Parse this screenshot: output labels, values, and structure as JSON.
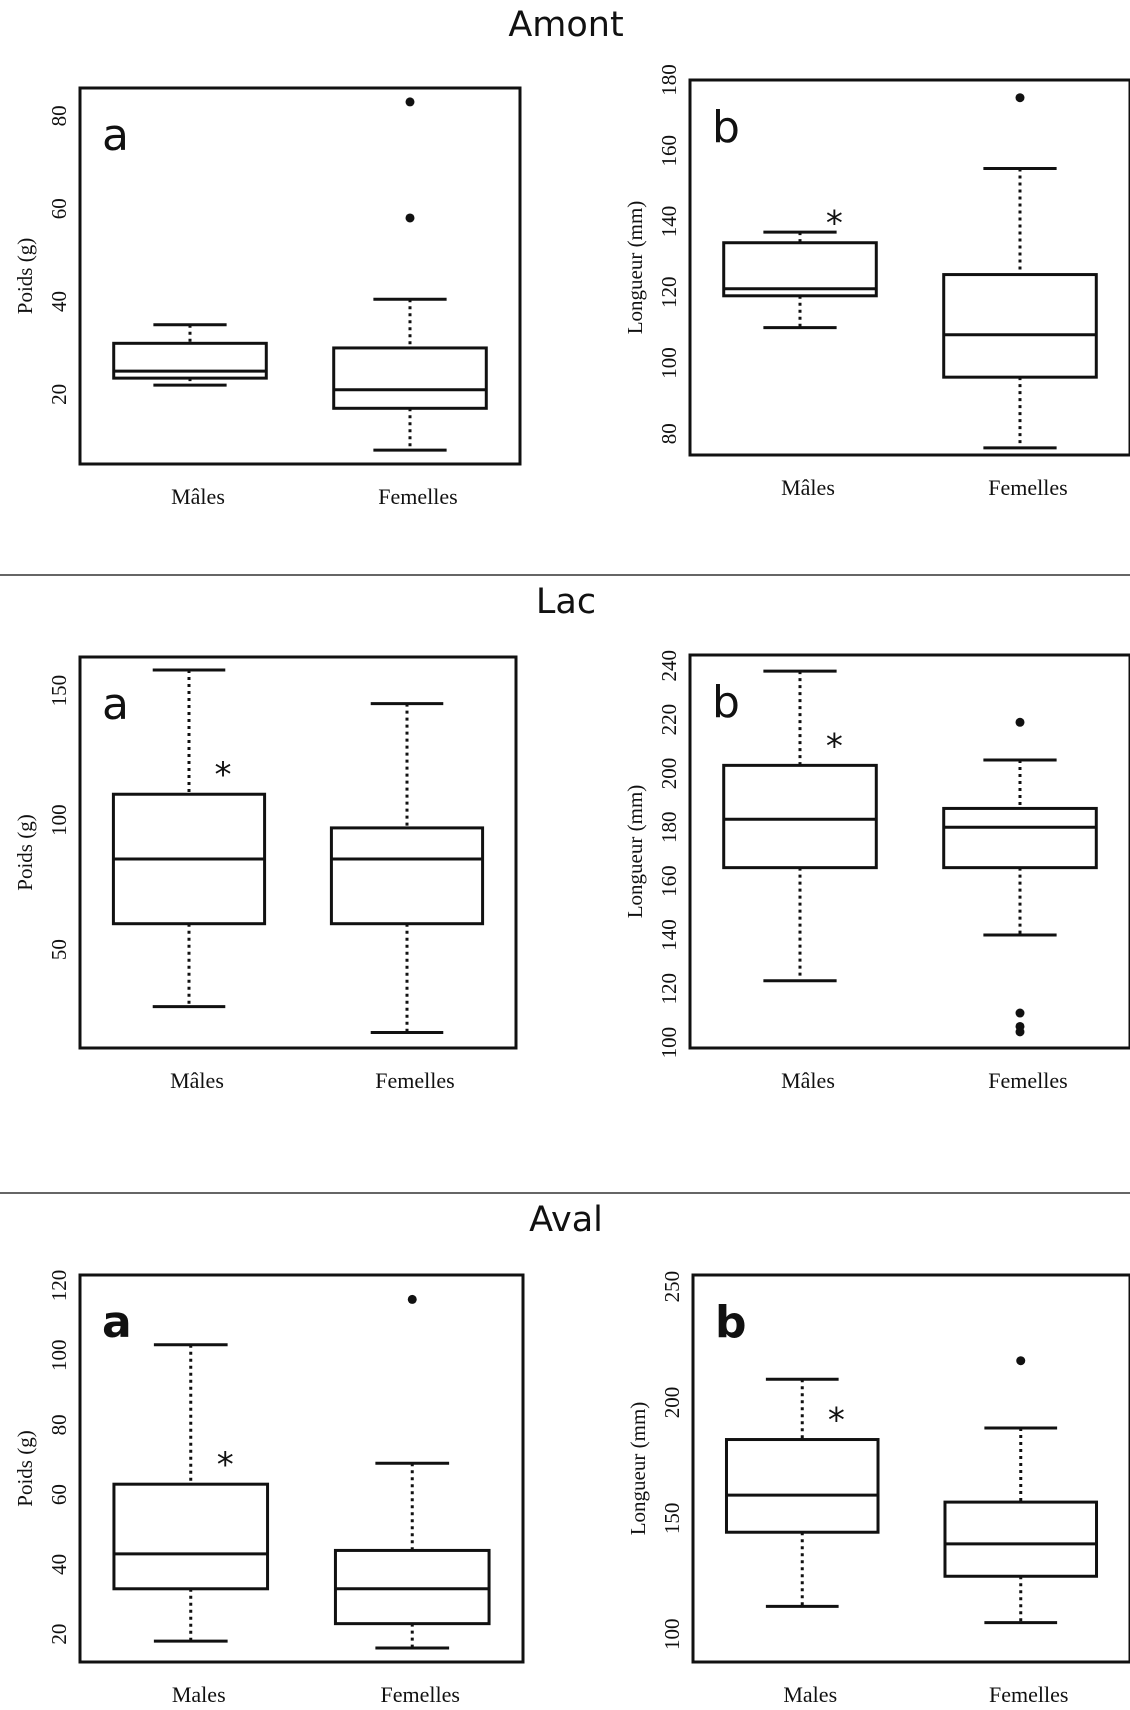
{
  "sections": [
    {
      "title": "Amont"
    },
    {
      "title": "Lac"
    },
    {
      "title": "Aval"
    }
  ],
  "chart_data": [
    {
      "type": "box",
      "section": "Amont",
      "panel_label": "a",
      "ylabel": "Poids (g)",
      "ylim": [
        5,
        86
      ],
      "yticks": [
        20,
        40,
        60,
        80
      ],
      "categories": [
        "Mâles",
        "Femelles"
      ],
      "boxes": [
        {
          "category": "Mâles",
          "whisker_low": 22,
          "q1": 23.5,
          "median": 25,
          "q3": 31,
          "whisker_high": 35,
          "outliers": [],
          "significant": false
        },
        {
          "category": "Femelles",
          "whisker_low": 8,
          "q1": 17,
          "median": 21,
          "q3": 30,
          "whisker_high": 40.5,
          "outliers": [
            58,
            83
          ],
          "significant": false
        }
      ]
    },
    {
      "type": "box",
      "section": "Amont",
      "panel_label": "b",
      "ylabel": "Longueur (mm)",
      "ylim": [
        74,
        180
      ],
      "yticks": [
        80,
        100,
        120,
        140,
        160,
        180
      ],
      "categories": [
        "Mâles",
        "Femelles"
      ],
      "boxes": [
        {
          "category": "Mâles",
          "whisker_low": 110,
          "q1": 119,
          "median": 121,
          "q3": 134,
          "whisker_high": 137,
          "outliers": [],
          "significant": true
        },
        {
          "category": "Femelles",
          "whisker_low": 76,
          "q1": 96,
          "median": 108,
          "q3": 125,
          "whisker_high": 155,
          "outliers": [
            175
          ],
          "significant": false
        }
      ]
    },
    {
      "type": "box",
      "section": "Lac",
      "panel_label": "a",
      "ylabel": "Poids (g)",
      "ylim": [
        12,
        163
      ],
      "yticks": [
        50,
        100,
        150
      ],
      "categories": [
        "Mâles",
        "Femelles"
      ],
      "boxes": [
        {
          "category": "Mâles",
          "whisker_low": 28,
          "q1": 60,
          "median": 85,
          "q3": 110,
          "whisker_high": 158,
          "outliers": [],
          "significant": true
        },
        {
          "category": "Femelles",
          "whisker_low": 18,
          "q1": 60,
          "median": 85,
          "q3": 97,
          "whisker_high": 145,
          "outliers": [],
          "significant": false
        }
      ]
    },
    {
      "type": "box",
      "section": "Lac",
      "panel_label": "b",
      "ylabel": "Longueur (mm)",
      "ylim": [
        98,
        244
      ],
      "yticks": [
        100,
        120,
        140,
        160,
        180,
        200,
        220,
        240
      ],
      "categories": [
        "Mâles",
        "Femelles"
      ],
      "boxes": [
        {
          "category": "Mâles",
          "whisker_low": 123,
          "q1": 165,
          "median": 183,
          "q3": 203,
          "whisker_high": 238,
          "outliers": [],
          "significant": true
        },
        {
          "category": "Femelles",
          "whisker_low": 140,
          "q1": 165,
          "median": 180,
          "q3": 187,
          "whisker_high": 205,
          "outliers": [
            219,
            111,
            106,
            104
          ],
          "significant": false
        }
      ]
    },
    {
      "type": "box",
      "section": "Aval",
      "panel_label": "a",
      "ylabel": "Poids (g)",
      "ylim": [
        12,
        123
      ],
      "yticks": [
        20,
        40,
        60,
        80,
        100,
        120
      ],
      "categories": [
        "Males",
        "Femelles"
      ],
      "boxes": [
        {
          "category": "Males",
          "whisker_low": 18,
          "q1": 33,
          "median": 43,
          "q3": 63,
          "whisker_high": 103,
          "outliers": [],
          "significant": true
        },
        {
          "category": "Femelles",
          "whisker_low": 16,
          "q1": 23,
          "median": 33,
          "q3": 44,
          "whisker_high": 69,
          "outliers": [
            116
          ],
          "significant": false
        }
      ]
    },
    {
      "type": "box",
      "section": "Aval",
      "panel_label": "b",
      "ylabel": "Longueur (mm)",
      "ylim": [
        88,
        255
      ],
      "yticks": [
        100,
        150,
        200,
        250
      ],
      "categories": [
        "Males",
        "Femelles"
      ],
      "boxes": [
        {
          "category": "Males",
          "whisker_low": 112,
          "q1": 144,
          "median": 160,
          "q3": 184,
          "whisker_high": 210,
          "outliers": [],
          "significant": true
        },
        {
          "category": "Femelles",
          "whisker_low": 105,
          "q1": 125,
          "median": 139,
          "q3": 157,
          "whisker_high": 189,
          "outliers": [
            218
          ],
          "significant": false
        }
      ]
    }
  ]
}
